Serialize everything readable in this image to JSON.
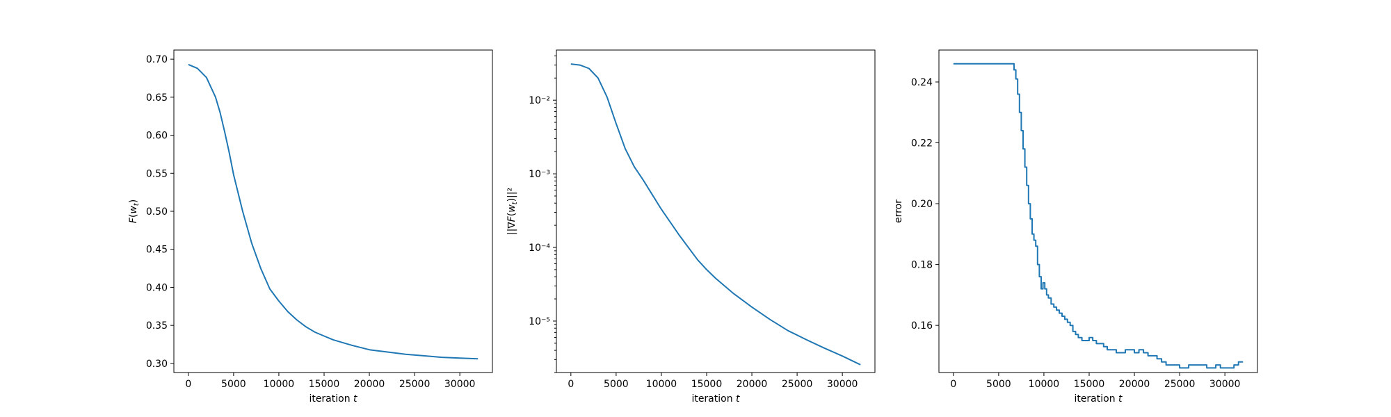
{
  "chart_data": [
    {
      "type": "line",
      "xlabel": "iteration t",
      "ylabel": "F(w_t)",
      "xlim": [
        -1600,
        33600
      ],
      "ylim": [
        0.288,
        0.712
      ],
      "yscale": "linear",
      "xticks": [
        0,
        5000,
        10000,
        15000,
        20000,
        25000,
        30000
      ],
      "xtick_labels": [
        "0",
        "5000",
        "10000",
        "15000",
        "20000",
        "25000",
        "30000"
      ],
      "yticks": [
        0.3,
        0.35,
        0.4,
        0.45,
        0.5,
        0.55,
        0.6,
        0.65,
        0.7
      ],
      "ytick_labels": [
        "0.30",
        "0.35",
        "0.40",
        "0.45",
        "0.50",
        "0.55",
        "0.60",
        "0.65",
        "0.70"
      ],
      "grid": false,
      "series": [
        {
          "color": "#1f77b4",
          "x": [
            0,
            1000,
            2000,
            3000,
            3500,
            4000,
            4500,
            5000,
            6000,
            7000,
            8000,
            9000,
            10000,
            11000,
            12000,
            13000,
            14000,
            15000,
            16000,
            18000,
            20000,
            22000,
            24000,
            26000,
            28000,
            30000,
            32000
          ],
          "y": [
            0.693,
            0.688,
            0.676,
            0.65,
            0.63,
            0.605,
            0.578,
            0.548,
            0.5,
            0.458,
            0.425,
            0.398,
            0.382,
            0.368,
            0.357,
            0.348,
            0.341,
            0.336,
            0.331,
            0.324,
            0.318,
            0.315,
            0.312,
            0.31,
            0.308,
            0.307,
            0.306
          ]
        }
      ]
    },
    {
      "type": "line",
      "xlabel": "iteration t",
      "ylabel": "||∇F(w_t)||²",
      "xlim": [
        -1600,
        33600
      ],
      "ylim": [
        2e-06,
        0.048
      ],
      "yscale": "log",
      "xticks": [
        0,
        5000,
        10000,
        15000,
        20000,
        25000,
        30000
      ],
      "xtick_labels": [
        "0",
        "5000",
        "10000",
        "15000",
        "20000",
        "25000",
        "30000"
      ],
      "yticks": [
        1e-05,
        0.0001,
        0.001,
        0.01
      ],
      "ytick_labels": [
        "10⁻⁵",
        "10⁻⁴",
        "10⁻³",
        "10⁻²"
      ],
      "grid": false,
      "series": [
        {
          "color": "#1f77b4",
          "x": [
            0,
            1000,
            2000,
            3000,
            4000,
            5000,
            6000,
            7000,
            8000,
            9000,
            10000,
            12000,
            14000,
            15000,
            16000,
            18000,
            20000,
            22000,
            24000,
            26000,
            28000,
            30000,
            32000
          ],
          "y": [
            0.031,
            0.03,
            0.027,
            0.02,
            0.011,
            0.0048,
            0.0022,
            0.00125,
            0.00082,
            0.00052,
            0.00033,
            0.000145,
            6.8e-05,
            5e-05,
            3.8e-05,
            2.35e-05,
            1.55e-05,
            1.05e-05,
            7.4e-06,
            5.6e-06,
            4.3e-06,
            3.35e-06,
            2.55e-06
          ]
        }
      ]
    },
    {
      "type": "line",
      "xlabel": "iteration t",
      "ylabel": "error",
      "xlim": [
        -1600,
        33600
      ],
      "ylim": [
        0.1445,
        0.2505
      ],
      "yscale": "linear",
      "xticks": [
        0,
        5000,
        10000,
        15000,
        20000,
        25000,
        30000
      ],
      "xtick_labels": [
        "0",
        "5000",
        "10000",
        "15000",
        "20000",
        "25000",
        "30000"
      ],
      "yticks": [
        0.16,
        0.18,
        0.2,
        0.22,
        0.24
      ],
      "ytick_labels": [
        "0.16",
        "0.18",
        "0.20",
        "0.22",
        "0.24"
      ],
      "grid": false,
      "series": [
        {
          "color": "#1f77b4",
          "step": true,
          "x": [
            0,
            6500,
            6700,
            6900,
            7100,
            7300,
            7500,
            7700,
            7900,
            8100,
            8300,
            8500,
            8700,
            8900,
            9100,
            9300,
            9500,
            9700,
            9900,
            10100,
            10300,
            10500,
            10800,
            11100,
            11400,
            11700,
            12000,
            12300,
            12600,
            12900,
            13200,
            13500,
            13800,
            14200,
            14600,
            15000,
            15400,
            15800,
            16200,
            16600,
            17000,
            17500,
            18000,
            18500,
            19000,
            19500,
            20000,
            20500,
            21000,
            21500,
            22000,
            22500,
            23000,
            23500,
            24000,
            24500,
            25000,
            25500,
            26000,
            27000,
            28000,
            28500,
            29000,
            29500,
            30000,
            30500,
            31000,
            31500,
            32000
          ],
          "y": [
            0.246,
            0.246,
            0.244,
            0.241,
            0.236,
            0.23,
            0.224,
            0.218,
            0.212,
            0.206,
            0.2,
            0.195,
            0.19,
            0.188,
            0.186,
            0.18,
            0.176,
            0.172,
            0.174,
            0.172,
            0.17,
            0.169,
            0.167,
            0.166,
            0.165,
            0.164,
            0.163,
            0.162,
            0.161,
            0.16,
            0.158,
            0.157,
            0.156,
            0.155,
            0.155,
            0.156,
            0.155,
            0.154,
            0.154,
            0.153,
            0.152,
            0.152,
            0.151,
            0.151,
            0.152,
            0.152,
            0.151,
            0.152,
            0.151,
            0.15,
            0.15,
            0.149,
            0.148,
            0.147,
            0.147,
            0.147,
            0.146,
            0.146,
            0.147,
            0.147,
            0.146,
            0.146,
            0.147,
            0.146,
            0.146,
            0.146,
            0.147,
            0.148,
            0.148
          ]
        }
      ]
    }
  ]
}
